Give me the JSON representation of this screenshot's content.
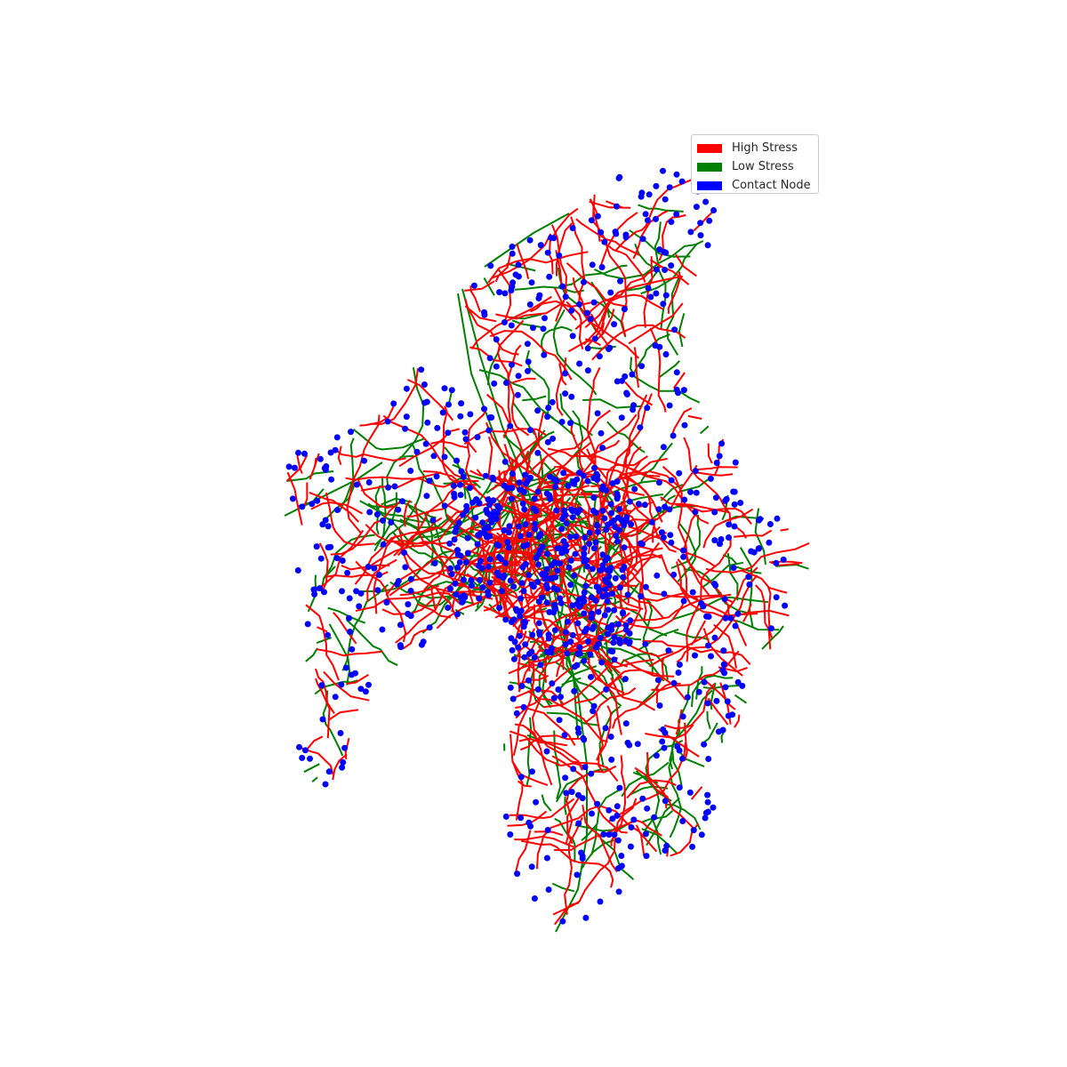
{
  "legend": {
    "items": [
      {
        "label": "High Stress",
        "color": "#ff0000"
      },
      {
        "label": "Low Stress",
        "color": "#008000"
      },
      {
        "label": "Contact Node",
        "color": "#0000ff"
      }
    ]
  },
  "colors": {
    "high_stress": "#ff0000",
    "low_stress": "#008000",
    "contact_node": "#0000ff"
  }
}
